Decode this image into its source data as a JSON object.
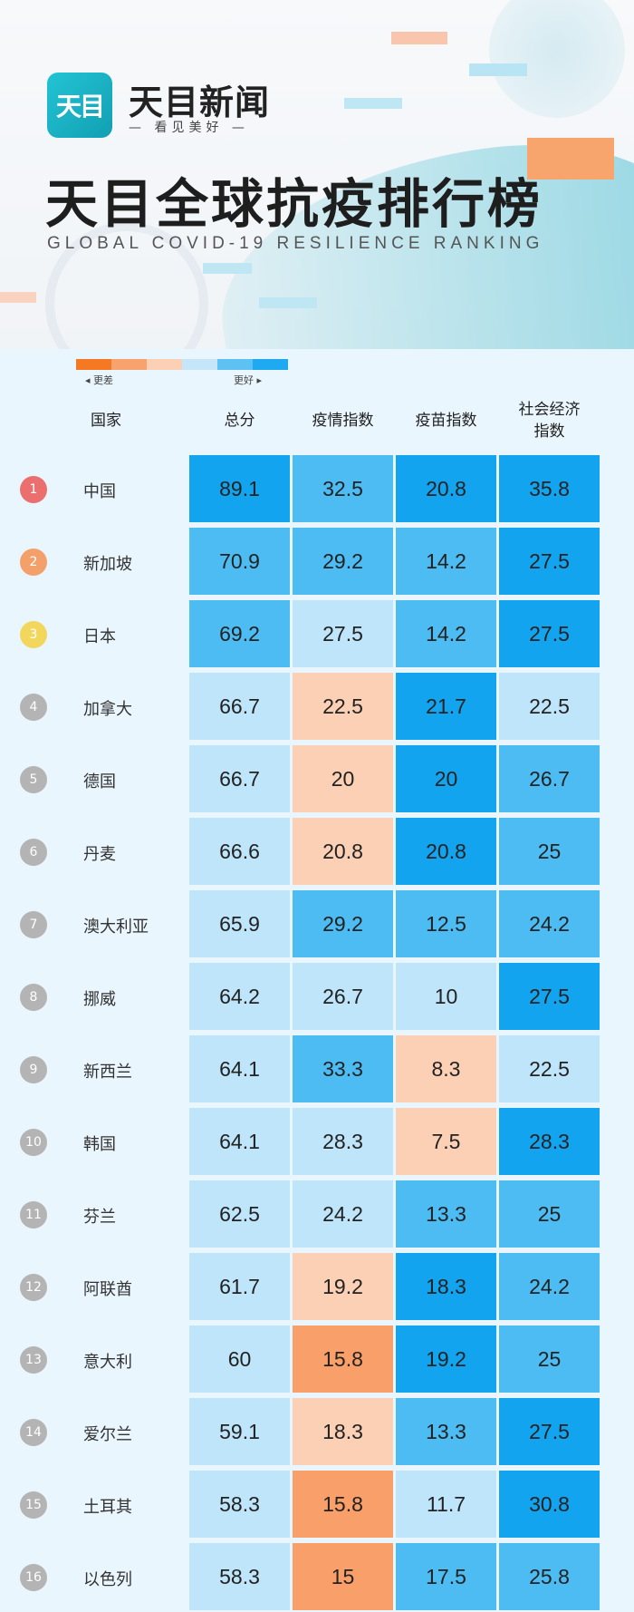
{
  "brand": {
    "logo_text": "天目",
    "name": "天目新闻",
    "slogan": "— 看见美好 —"
  },
  "title": "天目全球抗疫排行榜",
  "subtitle": "GLOBAL COVID-19 RESILIENCE RANKING",
  "legend": {
    "worse_label": "◂ 更差",
    "better_label": "更好 ▸",
    "colors": [
      "#f57822",
      "#f8a36e",
      "#fbd0b5",
      "#c5e6f9",
      "#5ec1f4",
      "#1ea9f0"
    ]
  },
  "columns": {
    "country": "国家",
    "total": "总分",
    "epidemic": "疫情指数",
    "vaccine": "疫苗指数",
    "socio": "社会经济\n指数"
  },
  "palette": {
    "orange": "#f9a06a",
    "peach": "#fbd0b5",
    "lightblue": "#bfe5fa",
    "midblue": "#4cbcf3",
    "blue": "#13a4ef",
    "rank_red": "#ec6f6f",
    "rank_orange": "#f3a06b",
    "rank_yellow": "#f3d75d",
    "rank_gray": "#b4b4b4"
  },
  "rows": [
    {
      "rank": "1",
      "rank_color": "rank_red",
      "country": "中国",
      "total": "89.1",
      "total_c": "blue",
      "epi": "32.5",
      "epi_c": "midblue",
      "vac": "20.8",
      "vac_c": "blue",
      "soc": "35.8",
      "soc_c": "blue"
    },
    {
      "rank": "2",
      "rank_color": "rank_orange",
      "country": "新加坡",
      "total": "70.9",
      "total_c": "midblue",
      "epi": "29.2",
      "epi_c": "midblue",
      "vac": "14.2",
      "vac_c": "midblue",
      "soc": "27.5",
      "soc_c": "blue"
    },
    {
      "rank": "3",
      "rank_color": "rank_yellow",
      "country": "日本",
      "total": "69.2",
      "total_c": "midblue",
      "epi": "27.5",
      "epi_c": "lightblue",
      "vac": "14.2",
      "vac_c": "midblue",
      "soc": "27.5",
      "soc_c": "blue"
    },
    {
      "rank": "4",
      "rank_color": "rank_gray",
      "country": "加拿大",
      "total": "66.7",
      "total_c": "lightblue",
      "epi": "22.5",
      "epi_c": "peach",
      "vac": "21.7",
      "vac_c": "blue",
      "soc": "22.5",
      "soc_c": "lightblue"
    },
    {
      "rank": "5",
      "rank_color": "rank_gray",
      "country": "德国",
      "total": "66.7",
      "total_c": "lightblue",
      "epi": "20",
      "epi_c": "peach",
      "vac": "20",
      "vac_c": "blue",
      "soc": "26.7",
      "soc_c": "midblue"
    },
    {
      "rank": "6",
      "rank_color": "rank_gray",
      "country": "丹麦",
      "total": "66.6",
      "total_c": "lightblue",
      "epi": "20.8",
      "epi_c": "peach",
      "vac": "20.8",
      "vac_c": "blue",
      "soc": "25",
      "soc_c": "midblue"
    },
    {
      "rank": "7",
      "rank_color": "rank_gray",
      "country": "澳大利亚",
      "total": "65.9",
      "total_c": "lightblue",
      "epi": "29.2",
      "epi_c": "midblue",
      "vac": "12.5",
      "vac_c": "midblue",
      "soc": "24.2",
      "soc_c": "midblue"
    },
    {
      "rank": "8",
      "rank_color": "rank_gray",
      "country": "挪威",
      "total": "64.2",
      "total_c": "lightblue",
      "epi": "26.7",
      "epi_c": "lightblue",
      "vac": "10",
      "vac_c": "lightblue",
      "soc": "27.5",
      "soc_c": "blue"
    },
    {
      "rank": "9",
      "rank_color": "rank_gray",
      "country": "新西兰",
      "total": "64.1",
      "total_c": "lightblue",
      "epi": "33.3",
      "epi_c": "midblue",
      "vac": "8.3",
      "vac_c": "peach",
      "soc": "22.5",
      "soc_c": "lightblue"
    },
    {
      "rank": "10",
      "rank_color": "rank_gray",
      "country": "韩国",
      "total": "64.1",
      "total_c": "lightblue",
      "epi": "28.3",
      "epi_c": "lightblue",
      "vac": "7.5",
      "vac_c": "peach",
      "soc": "28.3",
      "soc_c": "blue"
    },
    {
      "rank": "11",
      "rank_color": "rank_gray",
      "country": "芬兰",
      "total": "62.5",
      "total_c": "lightblue",
      "epi": "24.2",
      "epi_c": "lightblue",
      "vac": "13.3",
      "vac_c": "midblue",
      "soc": "25",
      "soc_c": "midblue"
    },
    {
      "rank": "12",
      "rank_color": "rank_gray",
      "country": "阿联酋",
      "total": "61.7",
      "total_c": "lightblue",
      "epi": "19.2",
      "epi_c": "peach",
      "vac": "18.3",
      "vac_c": "blue",
      "soc": "24.2",
      "soc_c": "midblue"
    },
    {
      "rank": "13",
      "rank_color": "rank_gray",
      "country": "意大利",
      "total": "60",
      "total_c": "lightblue",
      "epi": "15.8",
      "epi_c": "orange",
      "vac": "19.2",
      "vac_c": "blue",
      "soc": "25",
      "soc_c": "midblue"
    },
    {
      "rank": "14",
      "rank_color": "rank_gray",
      "country": "爱尔兰",
      "total": "59.1",
      "total_c": "lightblue",
      "epi": "18.3",
      "epi_c": "peach",
      "vac": "13.3",
      "vac_c": "midblue",
      "soc": "27.5",
      "soc_c": "blue"
    },
    {
      "rank": "15",
      "rank_color": "rank_gray",
      "country": "土耳其",
      "total": "58.3",
      "total_c": "lightblue",
      "epi": "15.8",
      "epi_c": "orange",
      "vac": "11.7",
      "vac_c": "lightblue",
      "soc": "30.8",
      "soc_c": "blue"
    },
    {
      "rank": "16",
      "rank_color": "rank_gray",
      "country": "以色列",
      "total": "58.3",
      "total_c": "lightblue",
      "epi": "15",
      "epi_c": "orange",
      "vac": "17.5",
      "vac_c": "midblue",
      "soc": "25.8",
      "soc_c": "midblue"
    }
  ]
}
